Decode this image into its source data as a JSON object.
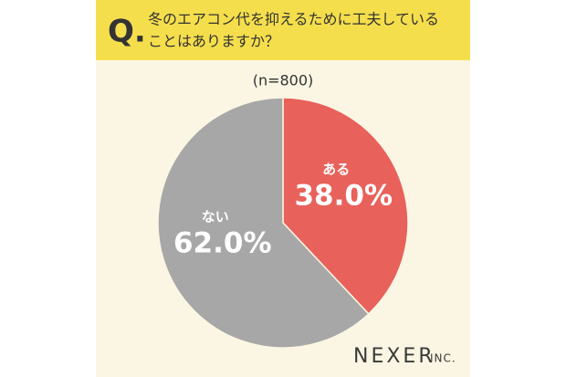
{
  "chart_data": {
    "type": "pie",
    "q_mark": "Q.",
    "title": [
      "冬のエアコン代を抑えるために工夫している",
      "ことはありますか？"
    ],
    "subtitle": "(n=800)",
    "categories": [
      "ある",
      "ない"
    ],
    "values": [
      38.0,
      62.0
    ],
    "value_labels": [
      "38.0%",
      "62.0%"
    ],
    "colors": [
      "#e8615b",
      "#a7a7a7"
    ],
    "brand": "NEXER",
    "brand_suffix": "INC."
  }
}
